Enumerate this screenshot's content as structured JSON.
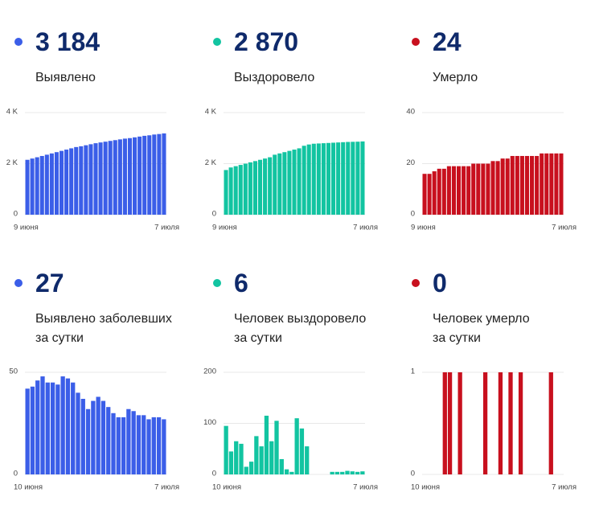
{
  "chart_data": [
    {
      "type": "bar",
      "headline": "3 184",
      "label": "Выявлено",
      "color": "#3b5ee8",
      "categories": [
        "9 июня",
        null,
        null,
        null,
        null,
        null,
        null,
        null,
        null,
        null,
        null,
        null,
        null,
        null,
        null,
        null,
        null,
        null,
        null,
        null,
        null,
        null,
        null,
        null,
        null,
        null,
        null,
        null,
        "7 июля"
      ],
      "values": [
        2150,
        2200,
        2250,
        2300,
        2350,
        2400,
        2450,
        2500,
        2550,
        2600,
        2650,
        2680,
        2720,
        2760,
        2800,
        2830,
        2860,
        2890,
        2920,
        2950,
        2980,
        3000,
        3030,
        3060,
        3090,
        3110,
        3140,
        3160,
        3184
      ],
      "ylim": [
        0,
        4000
      ],
      "yticks": [
        0,
        {
          "value": 2000,
          "label": "2 K"
        },
        {
          "value": 4000,
          "label": "4 K"
        }
      ],
      "grid": true
    },
    {
      "type": "bar",
      "headline": "2 870",
      "label": "Выздоровело",
      "color": "#12c4a1",
      "categories": [
        "9 июня",
        null,
        null,
        null,
        null,
        null,
        null,
        null,
        null,
        null,
        null,
        null,
        null,
        null,
        null,
        null,
        null,
        null,
        null,
        null,
        null,
        null,
        null,
        null,
        null,
        null,
        null,
        null,
        "7 июля"
      ],
      "values": [
        1750,
        1850,
        1900,
        1950,
        2000,
        2050,
        2100,
        2150,
        2200,
        2250,
        2350,
        2400,
        2450,
        2500,
        2550,
        2600,
        2700,
        2750,
        2780,
        2790,
        2800,
        2810,
        2820,
        2830,
        2840,
        2850,
        2855,
        2860,
        2870
      ],
      "ylim": [
        0,
        4000
      ],
      "yticks": [
        0,
        {
          "value": 2000,
          "label": "2 K"
        },
        {
          "value": 4000,
          "label": "4 K"
        }
      ],
      "grid": true
    },
    {
      "type": "bar",
      "headline": "24",
      "label": "Умерло",
      "color": "#c8101e",
      "categories": [
        "9 июня",
        null,
        null,
        null,
        null,
        null,
        null,
        null,
        null,
        null,
        null,
        null,
        null,
        null,
        null,
        null,
        null,
        null,
        null,
        null,
        null,
        null,
        null,
        null,
        null,
        null,
        null,
        null,
        "7 июля"
      ],
      "values": [
        16,
        16,
        17,
        18,
        18,
        19,
        19,
        19,
        19,
        19,
        20,
        20,
        20,
        20,
        21,
        21,
        22,
        22,
        23,
        23,
        23,
        23,
        23,
        23,
        24,
        24,
        24,
        24,
        24
      ],
      "ylim": [
        0,
        40
      ],
      "yticks": [
        0,
        20,
        40
      ],
      "grid": true
    },
    {
      "type": "bar",
      "headline": "27",
      "label": "Выявлено заболевших\nза сутки",
      "color": "#3b5ee8",
      "categories": [
        "10 июня",
        null,
        null,
        null,
        null,
        null,
        null,
        null,
        null,
        null,
        null,
        null,
        null,
        null,
        null,
        null,
        null,
        null,
        null,
        null,
        null,
        null,
        null,
        null,
        null,
        null,
        null,
        "7 июля"
      ],
      "values": [
        42,
        43,
        46,
        48,
        45,
        45,
        44,
        48,
        47,
        45,
        40,
        37,
        32,
        36,
        38,
        36,
        33,
        30,
        28,
        28,
        32,
        31,
        29,
        29,
        27,
        28,
        28,
        27
      ],
      "ylim": [
        0,
        50
      ],
      "yticks": [
        0,
        50
      ],
      "grid": true
    },
    {
      "type": "bar",
      "headline": "6",
      "label": "Человек выздоровело\nза сутки",
      "color": "#12c4a1",
      "categories": [
        "10 июня",
        null,
        null,
        null,
        null,
        null,
        null,
        null,
        null,
        null,
        null,
        null,
        null,
        null,
        null,
        null,
        null,
        null,
        null,
        null,
        null,
        null,
        null,
        null,
        null,
        null,
        null,
        "7 июля"
      ],
      "values": [
        95,
        45,
        65,
        60,
        15,
        25,
        75,
        55,
        115,
        65,
        105,
        30,
        10,
        5,
        110,
        90,
        55,
        0,
        0,
        0,
        0,
        5,
        5,
        5,
        7,
        6,
        5,
        6
      ],
      "ylim": [
        0,
        200
      ],
      "yticks": [
        0,
        100,
        200
      ],
      "grid": true
    },
    {
      "type": "bar",
      "headline": "0",
      "label": "Человек умерло\nза сутки",
      "color": "#c8101e",
      "categories": [
        "10 июня",
        null,
        null,
        null,
        null,
        null,
        null,
        null,
        null,
        null,
        null,
        null,
        null,
        null,
        null,
        null,
        null,
        null,
        null,
        null,
        null,
        null,
        null,
        null,
        null,
        null,
        null,
        "7 июля"
      ],
      "values": [
        0,
        0,
        0,
        0,
        1,
        1,
        0,
        1,
        0,
        0,
        0,
        0,
        1,
        0,
        0,
        1,
        0,
        1,
        0,
        1,
        0,
        0,
        0,
        0,
        0,
        1,
        0,
        0
      ],
      "ylim": [
        0,
        1
      ],
      "yticks": [
        0,
        1
      ],
      "grid": true
    }
  ]
}
